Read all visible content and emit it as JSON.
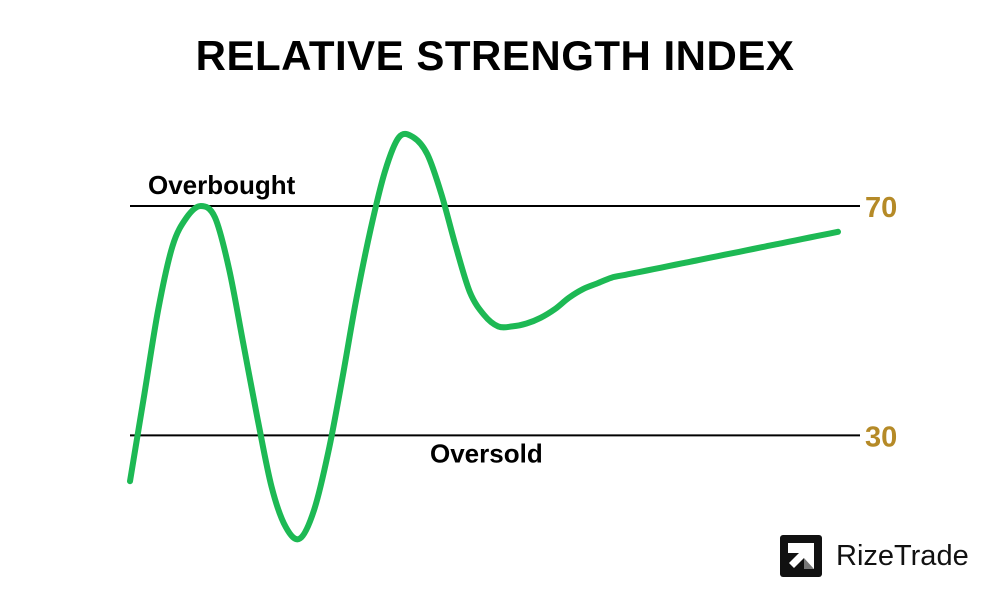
{
  "chart_data": {
    "type": "line",
    "title": "RELATIVE STRENGTH INDEX",
    "levels": [
      {
        "value": 70,
        "tick_label": "70",
        "zone_label": "Overbought"
      },
      {
        "value": 30,
        "tick_label": "30",
        "zone_label": "Oversold"
      }
    ],
    "series": [
      {
        "x": [
          0,
          2,
          4,
          6,
          8,
          10,
          12,
          14,
          16,
          18,
          20,
          22,
          24,
          26,
          28,
          30,
          32,
          34,
          36,
          38,
          40,
          42,
          44,
          46,
          48,
          50,
          52,
          54,
          56,
          58,
          60,
          62,
          64,
          66,
          68,
          70,
          72,
          74,
          76,
          78,
          80,
          82,
          84,
          86,
          88,
          90,
          92,
          94,
          96,
          98,
          100
        ],
        "values": [
          22,
          37,
          52,
          63,
          68,
          70,
          68,
          59,
          46,
          33,
          21,
          14,
          12,
          17,
          27,
          40,
          54,
          66,
          76,
          82,
          82,
          79,
          72,
          63,
          55,
          51,
          49,
          49,
          49.5,
          50.5,
          52,
          54,
          55.5,
          56.5,
          57.5,
          58,
          58.5,
          59,
          59.5,
          60,
          60.5,
          61,
          61.5,
          62,
          62.5,
          63,
          63.5,
          64,
          64.5,
          65,
          65.5
        ]
      }
    ],
    "ylim": [
      10,
      85
    ],
    "colors": {
      "line": "#1db954",
      "level_label": "#b58a27",
      "guide": "#000000"
    }
  },
  "brand": {
    "name": "RizeTrade",
    "icon": "arrow-up-right-icon"
  }
}
